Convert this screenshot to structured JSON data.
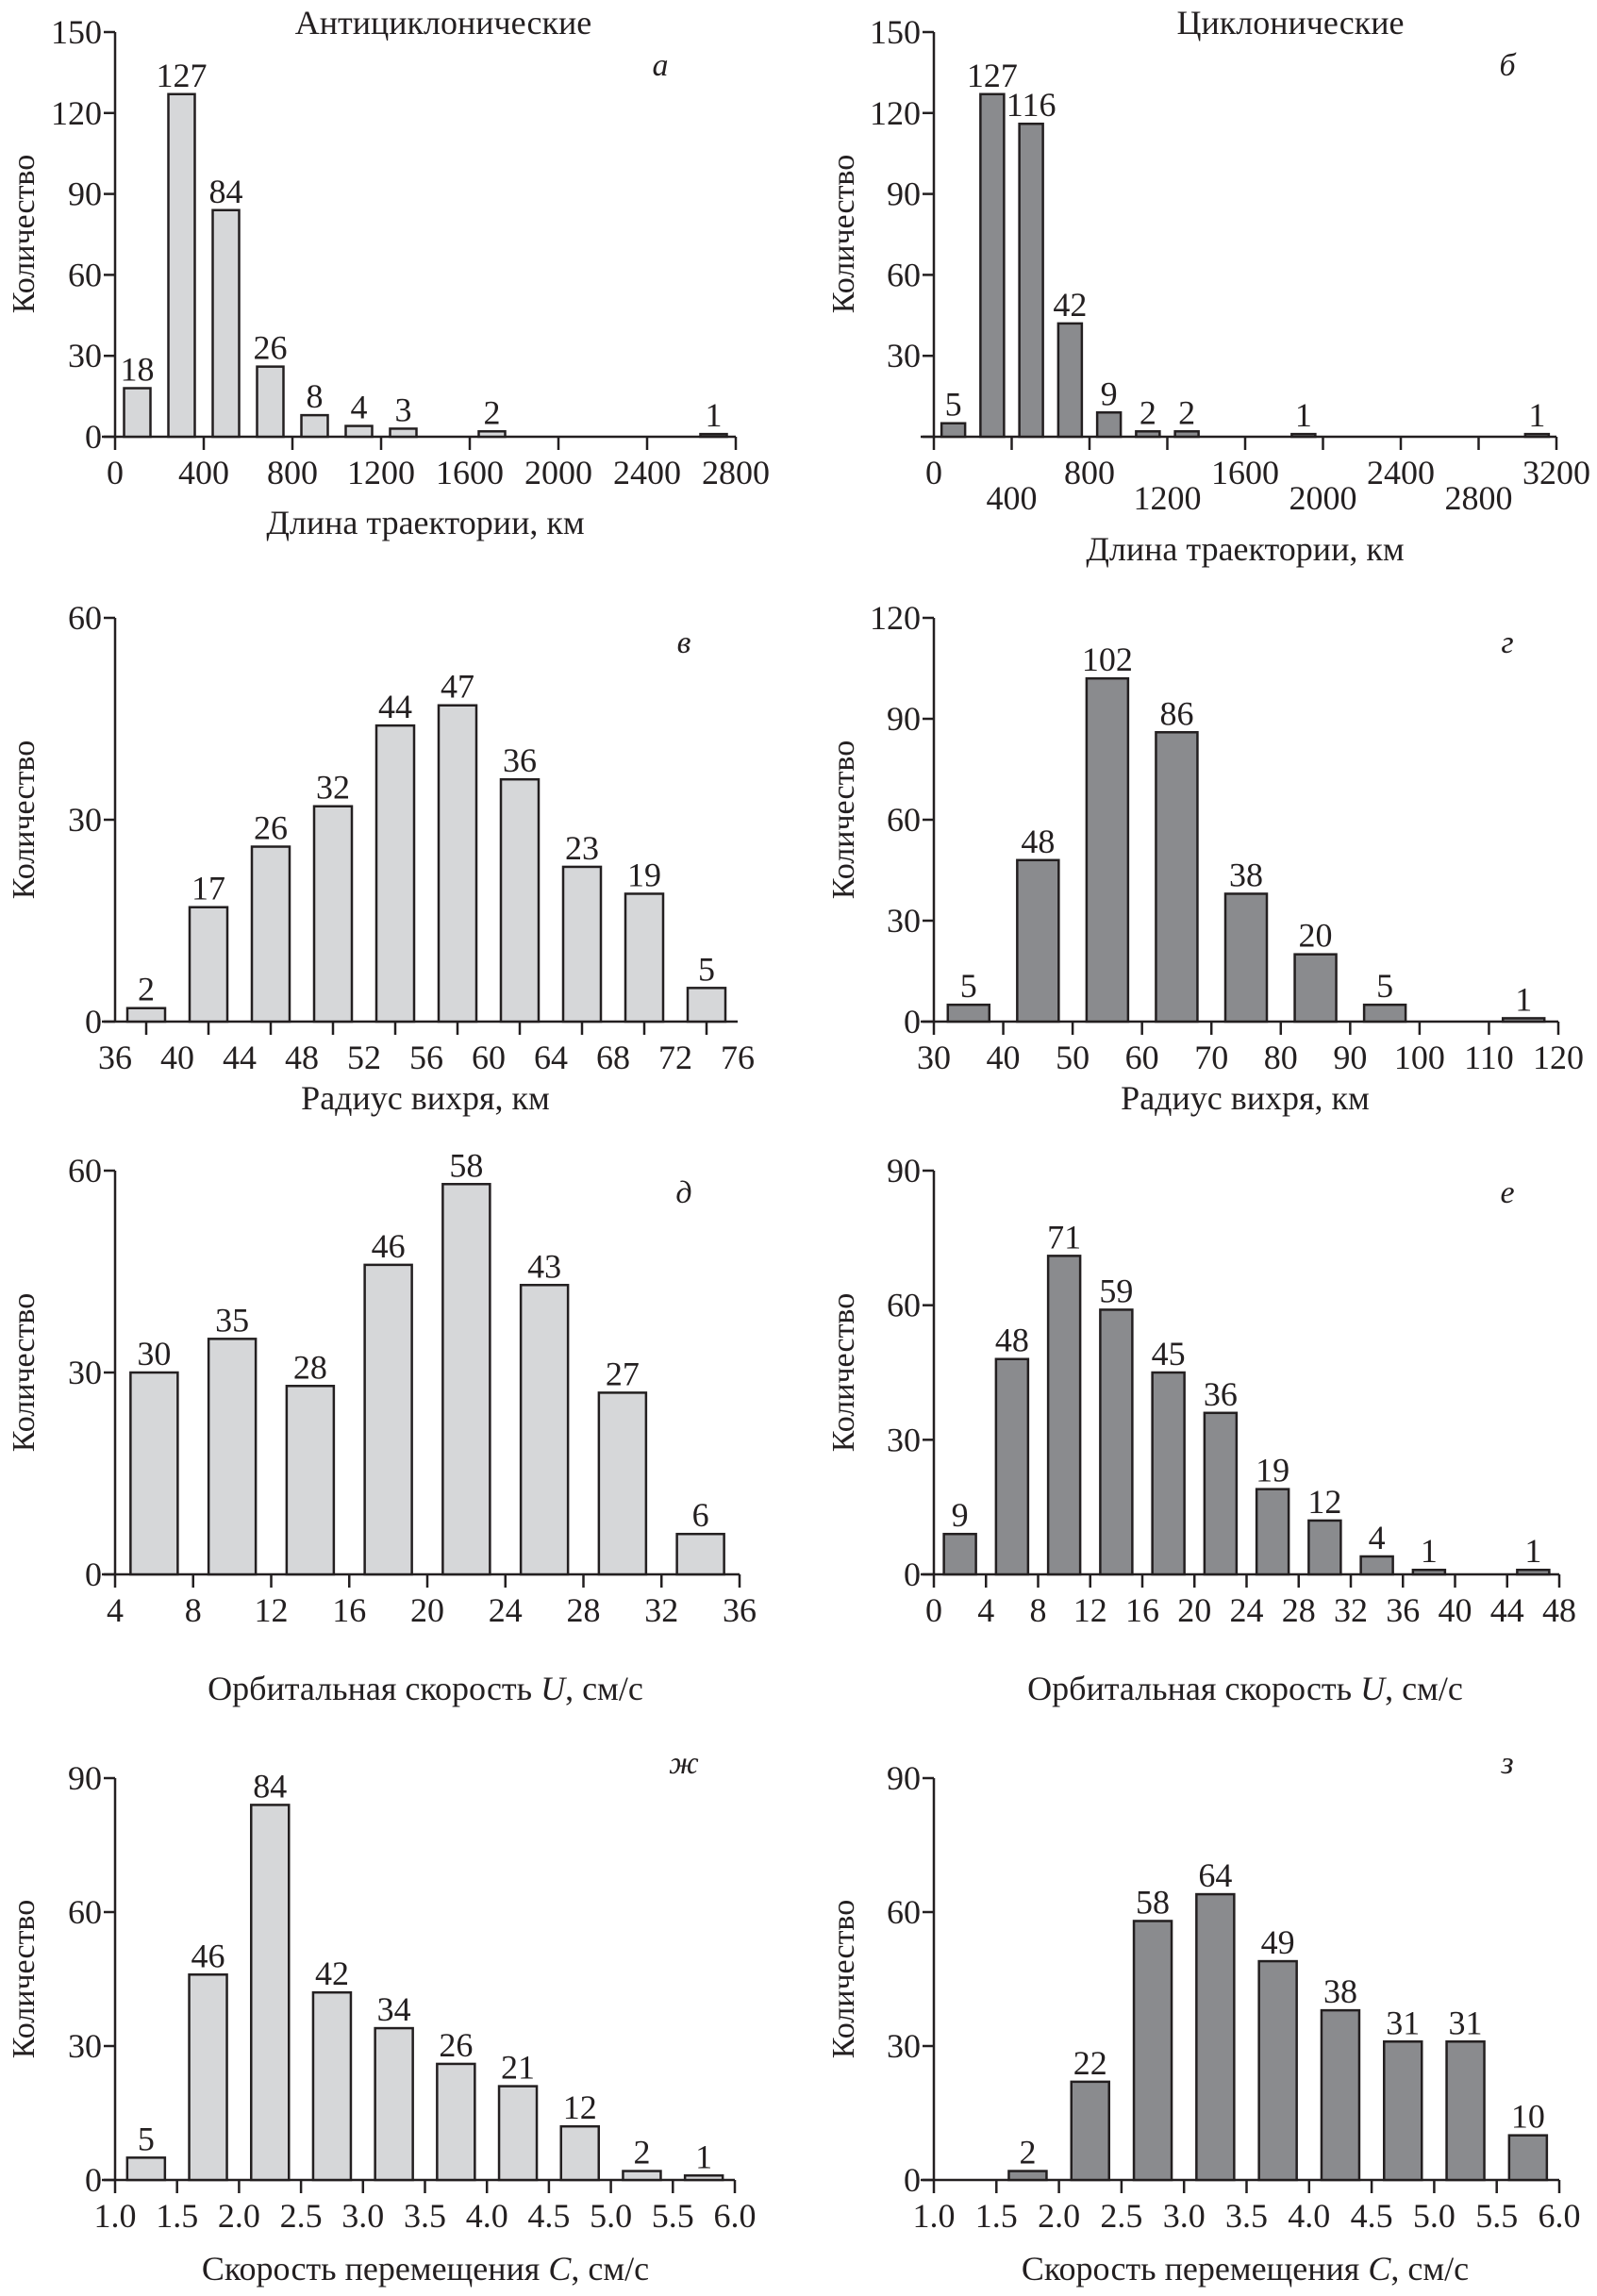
{
  "figure": {
    "group_titles": {
      "left": "Антициклонические",
      "right": "Циклонические"
    },
    "colors": {
      "anticyclonic_fill": "#d6d7d9",
      "cyclonic_fill": "#8a8b8e",
      "stroke": "#231f20"
    }
  },
  "chart_data": [
    {
      "id": "a",
      "type": "bar",
      "panel_letter": "а",
      "group": "Антициклонические",
      "title": "",
      "xlabel": "Длина траектории, км",
      "ylabel": "Количество",
      "xlim": [
        0,
        2800
      ],
      "ylim": [
        0,
        150
      ],
      "x_ticks": [
        0,
        400,
        800,
        1200,
        1600,
        2000,
        2400,
        2800
      ],
      "x_tick_labels": [
        "0",
        "400",
        "800",
        "1200",
        "1600",
        "2000",
        "2400",
        "2800"
      ],
      "y_ticks": [
        0,
        30,
        60,
        90,
        120,
        150
      ],
      "y_tick_labels": [
        "0",
        "30",
        "60",
        "90",
        "120",
        "150"
      ],
      "bin_width": 200,
      "x": [
        100,
        300,
        500,
        700,
        900,
        1100,
        1300,
        1700,
        2700
      ],
      "values": [
        18,
        127,
        84,
        26,
        8,
        4,
        3,
        2,
        1
      ],
      "data_labels": [
        "18",
        "127",
        "84",
        "26",
        "8",
        "4",
        "3",
        "2",
        "1"
      ],
      "grid": false
    },
    {
      "id": "b",
      "type": "bar",
      "panel_letter": "б",
      "group": "Циклонические",
      "title": "",
      "xlabel": "Длина траектории, км",
      "ylabel": "Количество",
      "xlim": [
        0,
        3200
      ],
      "ylim": [
        0,
        150
      ],
      "x_ticks": [
        0,
        400,
        800,
        1200,
        1600,
        2000,
        2400,
        2800,
        3200
      ],
      "x_tick_labels": [
        "0",
        "400",
        "800",
        "1200",
        "1600",
        "2000",
        "2400",
        "2800",
        "3200"
      ],
      "y_ticks": [
        0,
        30,
        60,
        90,
        120,
        150
      ],
      "y_tick_labels": [
        "",
        "30",
        "60",
        "90",
        "120",
        "150"
      ],
      "bin_width": 200,
      "x": [
        100,
        300,
        500,
        700,
        900,
        1100,
        1300,
        1900,
        3100
      ],
      "values": [
        5,
        127,
        116,
        42,
        9,
        2,
        2,
        1,
        1
      ],
      "data_labels": [
        "5",
        "127",
        "116",
        "42",
        "9",
        "2",
        "2",
        "1",
        "1"
      ],
      "grid": false
    },
    {
      "id": "v",
      "type": "bar",
      "panel_letter": "в",
      "group": "Антициклонические",
      "title": "",
      "xlabel": "Радиус вихря, км",
      "ylabel": "Количество",
      "xlim": [
        36,
        76
      ],
      "ylim": [
        0,
        60
      ],
      "x_tick_labels": [
        "36",
        "40",
        "44",
        "48",
        "52",
        "56",
        "60",
        "64",
        "68",
        "72",
        "76"
      ],
      "x_tick_label_values": [
        36,
        40,
        44,
        48,
        52,
        56,
        60,
        64,
        68,
        72,
        76
      ],
      "x_ticks": [
        38,
        42,
        46,
        50,
        54,
        58,
        62,
        66,
        70,
        74
      ],
      "y_ticks": [
        0,
        30,
        60
      ],
      "y_tick_labels": [
        "0",
        "30",
        "60"
      ],
      "bin_width": 4,
      "x": [
        38,
        42,
        46,
        50,
        54,
        58,
        62,
        66,
        70,
        74
      ],
      "values": [
        2,
        17,
        26,
        32,
        44,
        47,
        36,
        23,
        19,
        5
      ],
      "data_labels": [
        "2",
        "17",
        "26",
        "32",
        "44",
        "47",
        "36",
        "23",
        "19",
        "5"
      ],
      "grid": false
    },
    {
      "id": "g",
      "type": "bar",
      "panel_letter": "г",
      "group": "Циклонические",
      "title": "",
      "xlabel": "Радиус вихря, км",
      "ylabel": "Количество",
      "xlim": [
        30,
        120
      ],
      "ylim": [
        0,
        120
      ],
      "x_ticks": [
        30,
        40,
        50,
        60,
        70,
        80,
        90,
        100,
        110,
        120
      ],
      "x_tick_labels": [
        "30",
        "40",
        "50",
        "60",
        "70",
        "80",
        "90",
        "100",
        "110",
        "120"
      ],
      "y_ticks": [
        0,
        30,
        60,
        90,
        120
      ],
      "y_tick_labels": [
        "0",
        "30",
        "60",
        "90",
        "120"
      ],
      "bin_width": 10,
      "x": [
        35,
        45,
        55,
        65,
        75,
        85,
        95,
        115
      ],
      "values": [
        5,
        48,
        102,
        86,
        38,
        20,
        5,
        1
      ],
      "data_labels": [
        "5",
        "48",
        "102",
        "86",
        "38",
        "20",
        "5",
        "1"
      ],
      "grid": false
    },
    {
      "id": "d",
      "type": "bar",
      "panel_letter": "д",
      "group": "Антициклонические",
      "title": "",
      "xlabel_parts": [
        "Орбитальная скорость ",
        "U",
        ", см/с"
      ],
      "xlabel": "Орбитальная скорость U, см/с",
      "ylabel": "Количество",
      "xlim": [
        4,
        36
      ],
      "ylim": [
        0,
        60
      ],
      "x_ticks": [
        4,
        8,
        12,
        16,
        20,
        24,
        28,
        32,
        36
      ],
      "x_tick_labels": [
        "4",
        "8",
        "12",
        "16",
        "20",
        "24",
        "28",
        "32",
        "36"
      ],
      "y_ticks": [
        0,
        30,
        60
      ],
      "y_tick_labels": [
        "0",
        "30",
        "60"
      ],
      "bin_width": 4,
      "x": [
        6,
        10,
        14,
        18,
        22,
        26,
        30,
        34
      ],
      "values": [
        30,
        35,
        28,
        46,
        58,
        43,
        27,
        6
      ],
      "data_labels": [
        "30",
        "35",
        "28",
        "46",
        "58",
        "43",
        "27",
        "6"
      ],
      "grid": false
    },
    {
      "id": "e",
      "type": "bar",
      "panel_letter": "е",
      "group": "Циклонические",
      "title": "",
      "xlabel_parts": [
        "Орбитальная скорость ",
        "U",
        ", см/с"
      ],
      "xlabel": "Орбитальная скорость U, см/с",
      "ylabel": "Количество",
      "xlim": [
        0,
        48
      ],
      "ylim": [
        0,
        90
      ],
      "x_ticks": [
        0,
        4,
        8,
        12,
        16,
        20,
        24,
        28,
        32,
        36,
        40,
        44,
        48
      ],
      "x_tick_labels": [
        "0",
        "4",
        "8",
        "12",
        "16",
        "20",
        "24",
        "28",
        "32",
        "36",
        "40",
        "44",
        "48"
      ],
      "y_ticks": [
        0,
        30,
        60,
        90
      ],
      "y_tick_labels": [
        "0",
        "30",
        "60",
        "90"
      ],
      "bin_width": 4,
      "x": [
        2,
        6,
        10,
        14,
        18,
        22,
        26,
        30,
        34,
        38,
        46
      ],
      "values": [
        9,
        48,
        71,
        59,
        45,
        36,
        19,
        12,
        4,
        1,
        1
      ],
      "data_labels": [
        "9",
        "48",
        "71",
        "59",
        "45",
        "36",
        "19",
        "12",
        "4",
        "1",
        "1"
      ],
      "grid": false
    },
    {
      "id": "zh",
      "type": "bar",
      "panel_letter": "ж",
      "group": "Антициклонические",
      "title": "",
      "xlabel_parts": [
        "Скорость перемещения ",
        "C",
        ", см/с"
      ],
      "xlabel": "Скорость перемещения C, см/с",
      "ylabel": "Количество",
      "xlim": [
        1.0,
        6.0
      ],
      "ylim": [
        0,
        90
      ],
      "x_ticks": [
        1.0,
        1.5,
        2.0,
        2.5,
        3.0,
        3.5,
        4.0,
        4.5,
        5.0,
        5.5,
        6.0
      ],
      "x_tick_labels": [
        "1.0",
        "1.5",
        "2.0",
        "2.5",
        "3.0",
        "3.5",
        "4.0",
        "4.5",
        "5.0",
        "5.5",
        "6.0"
      ],
      "y_ticks": [
        0,
        30,
        60,
        90
      ],
      "y_tick_labels": [
        "0",
        "30",
        "60",
        "90"
      ],
      "bin_width": 0.5,
      "x": [
        1.25,
        1.75,
        2.25,
        2.75,
        3.25,
        3.75,
        4.25,
        4.75,
        5.25,
        5.75
      ],
      "values": [
        5,
        46,
        84,
        42,
        34,
        26,
        21,
        12,
        2,
        1
      ],
      "data_labels": [
        "5",
        "46",
        "84",
        "42",
        "34",
        "26",
        "21",
        "12",
        "2",
        "1"
      ],
      "grid": false
    },
    {
      "id": "z",
      "type": "bar",
      "panel_letter": "з",
      "group": "Циклонические",
      "title": "",
      "xlabel_parts": [
        "Скорость перемещения ",
        "C",
        ", см/с"
      ],
      "xlabel": "Скорость перемещения C, см/с",
      "ylabel": "Количество",
      "xlim": [
        1.0,
        6.0
      ],
      "ylim": [
        0,
        90
      ],
      "x_ticks": [
        1.0,
        1.5,
        2.0,
        2.5,
        3.0,
        3.5,
        4.0,
        4.5,
        5.0,
        5.5,
        6.0
      ],
      "x_tick_labels": [
        "1.0",
        "1.5",
        "2.0",
        "2.5",
        "3.0",
        "3.5",
        "4.0",
        "4.5",
        "5.0",
        "5.5",
        "6.0"
      ],
      "y_ticks": [
        0,
        30,
        60,
        90
      ],
      "y_tick_labels": [
        "0",
        "30",
        "60",
        "90"
      ],
      "bin_width": 0.5,
      "x": [
        1.75,
        2.25,
        2.75,
        3.25,
        3.75,
        4.25,
        4.75,
        5.25,
        5.75
      ],
      "values": [
        2,
        22,
        58,
        64,
        49,
        38,
        31,
        31,
        10
      ],
      "data_labels": [
        "2",
        "22",
        "58",
        "64",
        "49",
        "38",
        "31",
        "31",
        "10"
      ],
      "grid": false
    }
  ]
}
